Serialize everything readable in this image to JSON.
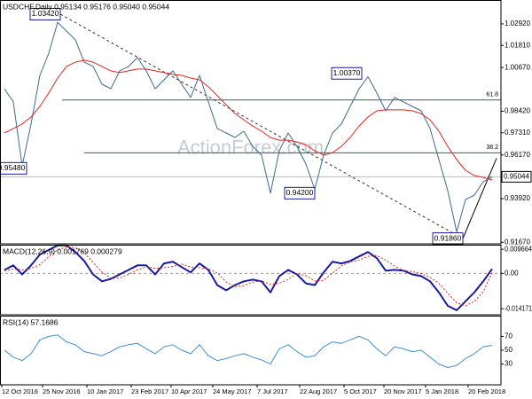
{
  "chart_data": [
    {
      "type": "line",
      "title": "USDCHF,Daily  0.95134 0.95176 0.95040 0.95044",
      "watermark": "ActionForex.com",
      "xlim": [
        -0.5,
        56
      ],
      "ylim": [
        0.9159,
        1.0415
      ],
      "yticks": [
        {
          "value": 1.0292,
          "label": "1.02920"
        },
        {
          "value": 1.0181,
          "label": "1.01810"
        },
        {
          "value": 1.0067,
          "label": "1.00670"
        },
        {
          "value": 0.9842,
          "label": "0.98420"
        },
        {
          "value": 0.9731,
          "label": "0.97310"
        },
        {
          "value": 0.9617,
          "label": "0.96170"
        },
        {
          "value": 0.9392,
          "label": "0.93920"
        },
        {
          "value": 0.9167,
          "label": "0.91670"
        }
      ],
      "current_price": 0.95044,
      "series": [
        {
          "color": "#3d6a8f",
          "values": [
            0.9958,
            0.989,
            0.956,
            0.9776,
            1.0027,
            1.0141,
            1.03,
            1.0255,
            1.021,
            1.0095,
            1.0073,
            0.9981,
            0.9958,
            1.005,
            1.0073,
            1.0118,
            1.005,
            0.9958,
            1.0004,
            1.005,
            0.9981,
            0.9913,
            1.0027,
            0.989,
            0.9753,
            0.973,
            0.9707,
            0.9739,
            0.9661,
            0.9616,
            0.942,
            0.9639,
            0.973,
            0.9661,
            0.957,
            0.944,
            0.9616,
            0.973,
            0.9776,
            0.9867,
            0.9958,
            1.002,
            0.9936,
            0.9844,
            0.9913,
            0.989,
            0.9867,
            0.9844,
            0.9753,
            0.9593,
            0.9433,
            0.922,
            0.9387,
            0.941,
            0.9479,
            0.9504
          ]
        },
        {
          "color": "#e8231c",
          "values": [
            0.973,
            0.9753,
            0.9776,
            0.9812,
            0.9867,
            0.9936,
            1.0013,
            1.0073,
            1.0095,
            1.0105,
            1.0095,
            1.0073,
            1.005,
            1.0041,
            1.005,
            1.0059,
            1.0059,
            1.005,
            1.0041,
            1.0032,
            1.0027,
            1.0013,
            1.0004,
            0.9968,
            0.9922,
            0.9876,
            0.983,
            0.9798,
            0.9766,
            0.9739,
            0.9707,
            0.9693,
            0.9693,
            0.9684,
            0.967,
            0.9638,
            0.9616,
            0.9629,
            0.9661,
            0.9707,
            0.9766,
            0.9812,
            0.9844,
            0.9849,
            0.9849,
            0.9849,
            0.9844,
            0.983,
            0.9798,
            0.9739,
            0.9661,
            0.9593,
            0.9538,
            0.9511,
            0.9501,
            0.9488
          ]
        }
      ],
      "annotations": [
        {
          "x": 6.3,
          "value": 1.0342,
          "label": "1.03420"
        },
        {
          "x": 2.5,
          "value": 0.9548,
          "label": "0.95480"
        },
        {
          "x": 35,
          "value": 0.942,
          "label": "0.94200"
        },
        {
          "x": 40.3,
          "value": 1.0037,
          "label": "1.00370"
        },
        {
          "x": 51.7,
          "value": 0.9186,
          "label": "0.91860"
        }
      ],
      "levels": [
        {
          "from": 6.5,
          "value": 0.99,
          "label": "61.8"
        },
        {
          "from": 9,
          "value": 0.9628,
          "label": "38.2"
        }
      ],
      "trendlines": [
        {
          "dashed": true,
          "points": [
            [
              6.3,
              1.0342
            ],
            [
              51.7,
              0.9186
            ]
          ]
        },
        {
          "dashed": false,
          "points": [
            [
              51.7,
              0.9186
            ],
            [
              55.5,
              0.96
            ]
          ]
        }
      ]
    },
    {
      "type": "line",
      "title": "MACD(12,26,9) 0.001769 0.000279",
      "xlim": [
        -0.5,
        56
      ],
      "ylim": [
        -0.0166,
        0.0115
      ],
      "yticks": [
        0.009664,
        {
          "value": 0,
          "label": "0.00"
        },
        -0.014171
      ],
      "zero_line": true,
      "series": [
        {
          "color": "#1a1aa0",
          "values": [
            0.0014,
            0.0032,
            -0.0004,
            0.0032,
            0.0076,
            0.0094,
            0.0112,
            0.0112,
            0.0086,
            0.005,
            -0.0004,
            -0.0032,
            -0.0022,
            -0.0004,
            0.0014,
            0.0032,
            0.0032,
            -0.0004,
            0.004,
            0.0047,
            0.0025,
            0.0004,
            0.004,
            0.0014,
            -0.0047,
            -0.0068,
            -0.0047,
            -0.0032,
            -0.0025,
            -0.0032,
            -0.0076,
            -0.0011,
            0.0014,
            -0.0004,
            -0.004,
            -0.0047,
            0.0004,
            0.0047,
            0.004,
            0.005,
            0.0068,
            0.0086,
            0.0061,
            0.0011,
            0.0014,
            0.0011,
            -0.0004,
            -0.0011,
            -0.0032,
            -0.0076,
            -0.013,
            -0.0148,
            -0.0112,
            -0.0076,
            -0.0032,
            0.0018
          ]
        },
        {
          "color": "#e8231c",
          "dashed": true,
          "values": [
            0.001,
            0.0018,
            0.0014,
            0.002,
            0.0035,
            0.0067,
            0.0094,
            0.0106,
            0.0103,
            0.0083,
            0.0044,
            0.0005,
            -0.0019,
            -0.0019,
            -0.0004,
            0.0014,
            0.0026,
            0.002,
            0.0023,
            0.0028,
            0.0037,
            0.0025,
            0.0023,
            0.0019,
            0.0002,
            -0.0034,
            -0.0054,
            -0.0049,
            -0.0035,
            -0.003,
            -0.0044,
            -0.004,
            -0.0024,
            0.0,
            -0.001,
            -0.003,
            -0.0028,
            0.0001,
            0.003,
            0.0046,
            0.0053,
            0.0068,
            0.0072,
            0.0053,
            0.0029,
            0.0012,
            0.0007,
            -0.0001,
            -0.0016,
            -0.004,
            -0.0079,
            -0.0118,
            -0.013,
            -0.0112,
            -0.0073,
            0.0003
          ]
        }
      ]
    },
    {
      "type": "line",
      "title": "RSI(14) 57.1686",
      "xlim": [
        -0.5,
        56
      ],
      "ylim": [
        0,
        100
      ],
      "yticks": [
        70,
        50,
        30
      ],
      "series": [
        {
          "color": "#3d8fd6",
          "values": [
            50,
            40,
            35,
            45,
            65,
            70,
            72,
            62,
            58,
            48,
            45,
            42,
            48,
            55,
            58,
            60,
            52,
            45,
            55,
            58,
            50,
            45,
            58,
            42,
            35,
            38,
            42,
            45,
            40,
            36,
            30,
            52,
            58,
            48,
            40,
            42,
            55,
            62,
            60,
            65,
            70,
            65,
            52,
            42,
            55,
            52,
            48,
            50,
            40,
            30,
            25,
            28,
            38,
            45,
            55,
            57
          ]
        }
      ],
      "xticks": [
        {
          "value": -0.3,
          "label": "12 Oct 2016"
        },
        {
          "value": 4.3,
          "label": "25 Nov 2016"
        },
        {
          "value": 9.3,
          "label": "10 Jan 2017"
        },
        {
          "value": 14.3,
          "label": "23 Feb 2017"
        },
        {
          "value": 18.8,
          "label": "10 Apr 2017"
        },
        {
          "value": 23.5,
          "label": "24 May 2017"
        },
        {
          "value": 28.5,
          "label": "7 Jul 2017"
        },
        {
          "value": 33.3,
          "label": "22 Aug 2017"
        },
        {
          "value": 38.3,
          "label": "5 Oct 2017"
        },
        {
          "value": 42.8,
          "label": "20 Nov 2017"
        },
        {
          "value": 47.5,
          "label": "5 Jan 2018"
        },
        {
          "value": 52.3,
          "label": "20 Feb 2018"
        }
      ]
    }
  ]
}
